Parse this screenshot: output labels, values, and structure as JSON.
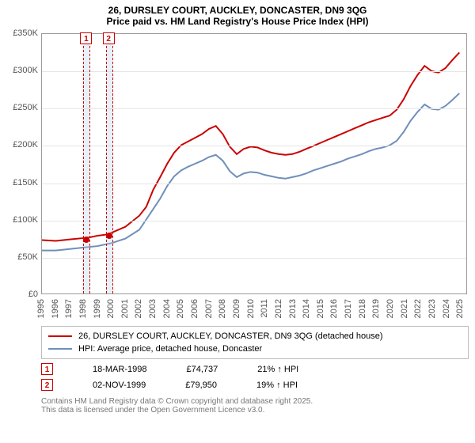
{
  "title": {
    "line1": "26, DURSLEY COURT, AUCKLEY, DONCASTER, DN9 3QG",
    "line2": "Price paid vs. HM Land Registry's House Price Index (HPI)",
    "fontsize": 12,
    "font_weight": "bold"
  },
  "chart": {
    "type": "line",
    "background_color": "#ffffff",
    "grid_color": "#e6e6e6",
    "border_color": "#9a9a9a",
    "xlim": [
      1995,
      2025.5
    ],
    "ylim": [
      0,
      350000
    ],
    "yticks": [
      0,
      50000,
      100000,
      150000,
      200000,
      250000,
      300000,
      350000
    ],
    "ytick_labels": [
      "£0",
      "£50K",
      "£100K",
      "£150K",
      "£200K",
      "£250K",
      "£300K",
      "£350K"
    ],
    "ytick_fontsize": 11,
    "xticks": [
      1995,
      1996,
      1997,
      1998,
      1999,
      2000,
      2001,
      2002,
      2003,
      2004,
      2005,
      2006,
      2007,
      2008,
      2009,
      2010,
      2011,
      2012,
      2013,
      2014,
      2015,
      2016,
      2017,
      2018,
      2019,
      2020,
      2021,
      2022,
      2023,
      2024,
      2025
    ],
    "xtick_fontsize": 11,
    "series": [
      {
        "name": "26, DURSLEY COURT, AUCKLEY, DONCASTER, DN9 3QG (detached house)",
        "color": "#cc0000",
        "line_width": 2,
        "points": [
          [
            1995,
            72000
          ],
          [
            1996,
            71000
          ],
          [
            1997,
            73000
          ],
          [
            1998,
            74737
          ],
          [
            1998.5,
            76000
          ],
          [
            1999,
            78000
          ],
          [
            1999.8,
            79950
          ],
          [
            2000,
            82000
          ],
          [
            2001,
            90000
          ],
          [
            2002,
            105000
          ],
          [
            2002.5,
            117000
          ],
          [
            2003,
            140000
          ],
          [
            2003.5,
            157000
          ],
          [
            2004,
            175000
          ],
          [
            2004.5,
            190000
          ],
          [
            2005,
            200000
          ],
          [
            2005.5,
            205000
          ],
          [
            2006,
            210000
          ],
          [
            2006.5,
            215000
          ],
          [
            2007,
            222000
          ],
          [
            2007.5,
            226000
          ],
          [
            2008,
            215000
          ],
          [
            2008.5,
            198000
          ],
          [
            2009,
            188000
          ],
          [
            2009.5,
            195000
          ],
          [
            2010,
            198000
          ],
          [
            2010.5,
            197000
          ],
          [
            2011,
            193000
          ],
          [
            2011.5,
            190000
          ],
          [
            2012,
            188000
          ],
          [
            2012.5,
            187000
          ],
          [
            2013,
            188000
          ],
          [
            2013.5,
            191000
          ],
          [
            2014,
            195000
          ],
          [
            2014.5,
            199000
          ],
          [
            2015,
            203000
          ],
          [
            2015.5,
            207000
          ],
          [
            2016,
            211000
          ],
          [
            2016.5,
            215000
          ],
          [
            2017,
            219000
          ],
          [
            2017.5,
            223000
          ],
          [
            2018,
            227000
          ],
          [
            2018.5,
            231000
          ],
          [
            2019,
            234000
          ],
          [
            2019.5,
            237000
          ],
          [
            2020,
            240000
          ],
          [
            2020.5,
            248000
          ],
          [
            2021,
            262000
          ],
          [
            2021.5,
            280000
          ],
          [
            2022,
            295000
          ],
          [
            2022.5,
            307000
          ],
          [
            2023,
            300000
          ],
          [
            2023.5,
            298000
          ],
          [
            2024,
            304000
          ],
          [
            2024.5,
            315000
          ],
          [
            2025,
            325000
          ]
        ]
      },
      {
        "name": "HPI: Average price, detached house, Doncaster",
        "color": "#6f8fbb",
        "line_width": 2,
        "points": [
          [
            1995,
            58000
          ],
          [
            1996,
            58000
          ],
          [
            1997,
            60000
          ],
          [
            1998,
            62000
          ],
          [
            1999,
            64000
          ],
          [
            2000,
            68000
          ],
          [
            2001,
            74000
          ],
          [
            2002,
            86000
          ],
          [
            2003,
            114000
          ],
          [
            2003.5,
            128000
          ],
          [
            2004,
            145000
          ],
          [
            2004.5,
            158000
          ],
          [
            2005,
            166000
          ],
          [
            2005.5,
            171000
          ],
          [
            2006,
            175000
          ],
          [
            2006.5,
            179000
          ],
          [
            2007,
            184000
          ],
          [
            2007.5,
            187000
          ],
          [
            2008,
            179000
          ],
          [
            2008.5,
            165000
          ],
          [
            2009,
            157000
          ],
          [
            2009.5,
            162000
          ],
          [
            2010,
            164000
          ],
          [
            2010.5,
            163000
          ],
          [
            2011,
            160000
          ],
          [
            2011.5,
            158000
          ],
          [
            2012,
            156000
          ],
          [
            2012.5,
            155000
          ],
          [
            2013,
            157000
          ],
          [
            2013.5,
            159000
          ],
          [
            2014,
            162000
          ],
          [
            2014.5,
            166000
          ],
          [
            2015,
            169000
          ],
          [
            2015.5,
            172000
          ],
          [
            2016,
            175000
          ],
          [
            2016.5,
            178000
          ],
          [
            2017,
            182000
          ],
          [
            2017.5,
            185000
          ],
          [
            2018,
            188000
          ],
          [
            2018.5,
            192000
          ],
          [
            2019,
            195000
          ],
          [
            2019.5,
            197000
          ],
          [
            2020,
            200000
          ],
          [
            2020.5,
            206000
          ],
          [
            2021,
            218000
          ],
          [
            2021.5,
            233000
          ],
          [
            2022,
            245000
          ],
          [
            2022.5,
            255000
          ],
          [
            2023,
            249000
          ],
          [
            2023.5,
            248000
          ],
          [
            2024,
            253000
          ],
          [
            2024.5,
            261000
          ],
          [
            2025,
            270000
          ]
        ]
      }
    ],
    "markers": [
      {
        "id": "1",
        "x": 1998.2,
        "date": "18-MAR-1998",
        "price_label": "£74,737",
        "delta_label": "21% ↑ HPI",
        "dot_y": 74737
      },
      {
        "id": "2",
        "x": 1999.8,
        "date": "02-NOV-1999",
        "price_label": "£79,950",
        "delta_label": "19% ↑ HPI",
        "dot_y": 79950
      }
    ],
    "marker_badge_border": "#cc0000",
    "marker_badge_text_color": "#cc0000",
    "marker_band_fill": "rgba(176,203,231,.28)"
  },
  "legend": {
    "border_color": "#bdbdbd",
    "fontsize": 11
  },
  "footer": {
    "line1": "Contains HM Land Registry data © Crown copyright and database right 2025.",
    "line2": "This data is licensed under the Open Government Licence v3.0.",
    "color": "#777777",
    "fontsize": 10
  }
}
